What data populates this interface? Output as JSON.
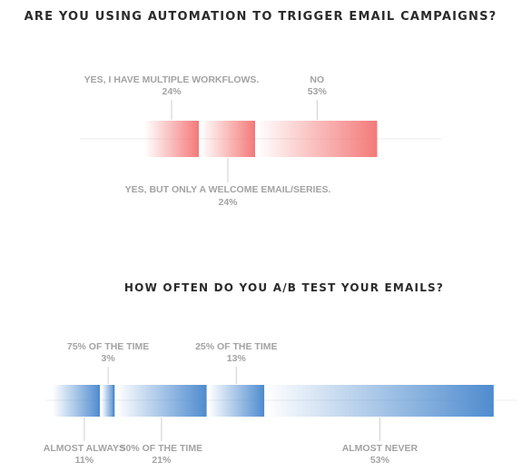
{
  "chart_data": [
    {
      "type": "bar",
      "title": "ARE YOU USING AUTOMATION TO TRIGGER EMAIL CAMPAIGNS?",
      "color": "#f47a7a",
      "categories": [
        "YES, I HAVE MULTIPLE WORKFLOWS.",
        "YES, BUT ONLY A WELCOME EMAIL/SERIES.",
        "NO"
      ],
      "values": [
        24,
        24,
        53
      ],
      "value_labels": [
        "24%",
        "24%",
        "53%"
      ]
    },
    {
      "type": "bar",
      "title": "HOW OFTEN DO YOU A/B TEST YOUR EMAILS?",
      "color": "#4f8ccf",
      "categories": [
        "ALMOST ALWAYS",
        "75% OF THE TIME",
        "50% OF THE TIME",
        "25% OF THE TIME",
        "ALMOST NEVER"
      ],
      "values": [
        11,
        3,
        21,
        13,
        53
      ],
      "value_labels": [
        "11%",
        "3%",
        "21%",
        "13%",
        "53%"
      ]
    }
  ]
}
